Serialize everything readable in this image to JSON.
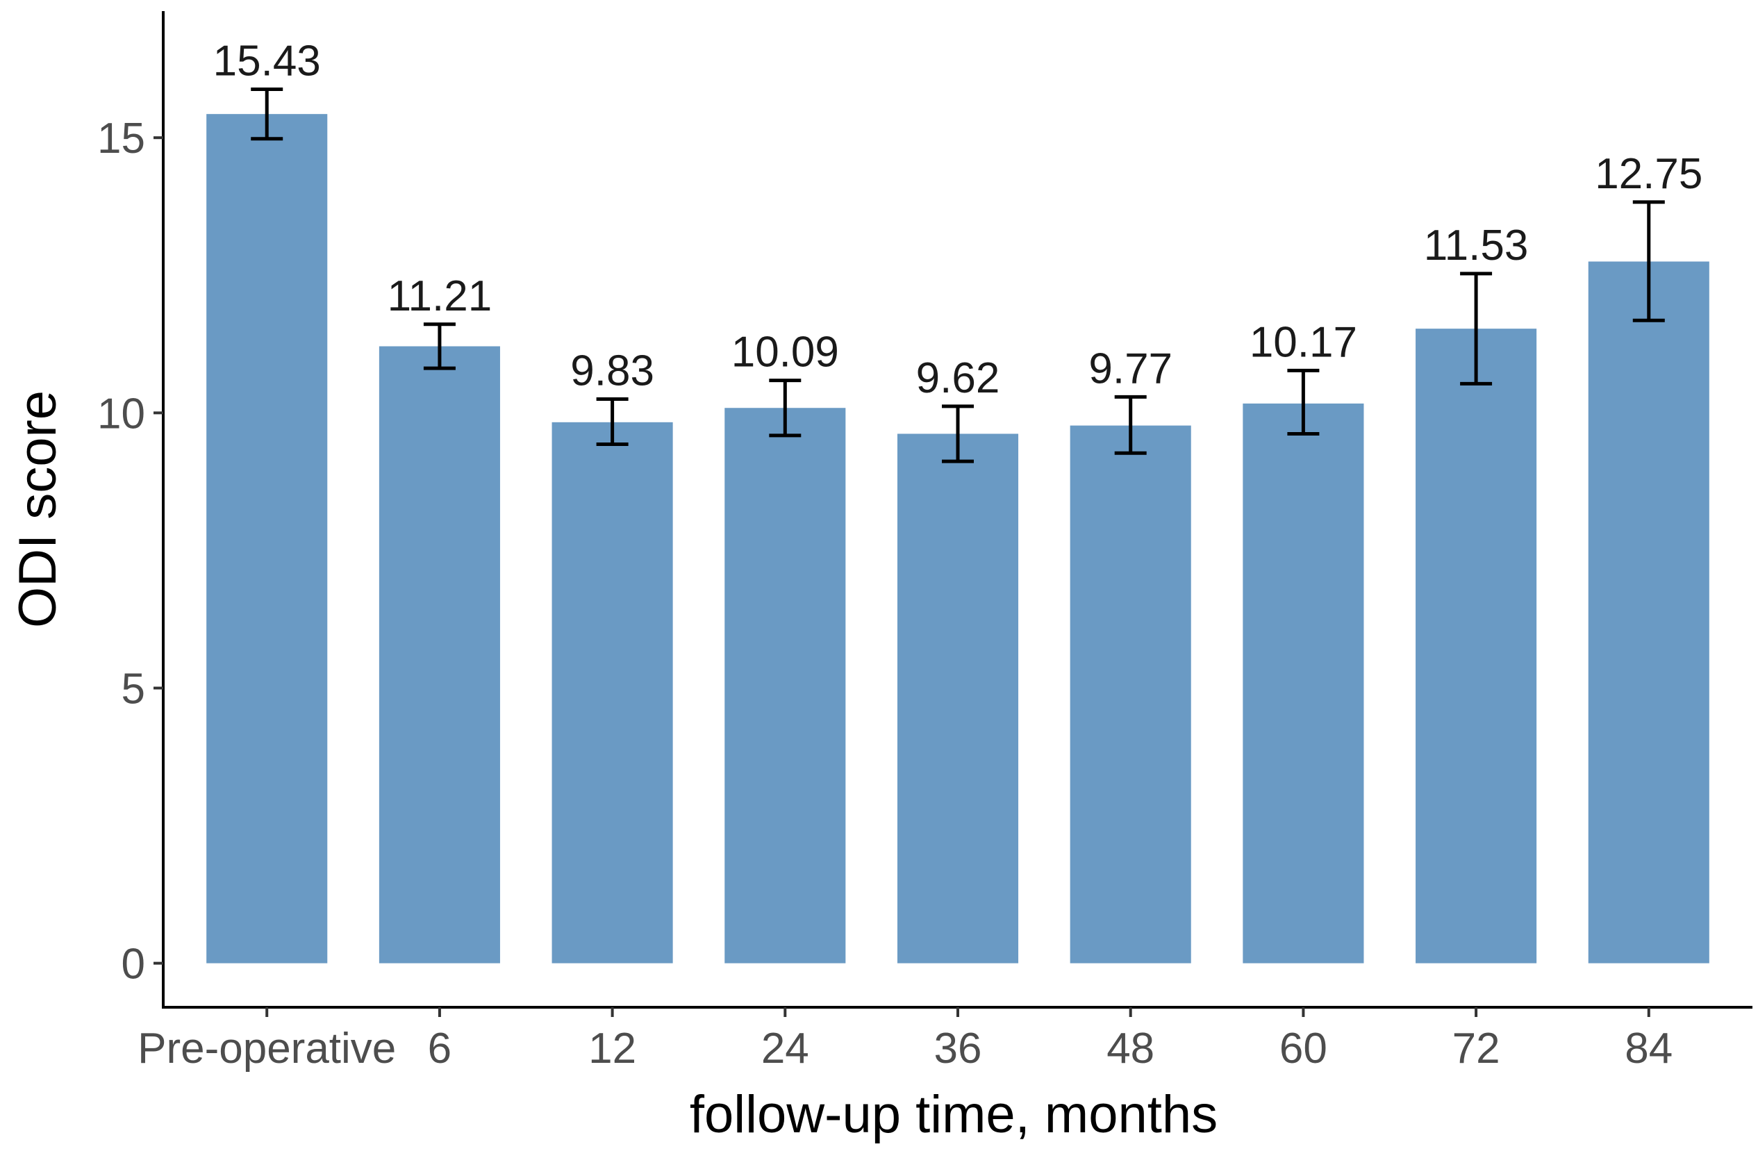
{
  "chart_data": {
    "type": "bar",
    "categories": [
      "Pre-operative",
      "6",
      "12",
      "24",
      "36",
      "48",
      "60",
      "72",
      "84"
    ],
    "values": [
      15.43,
      11.21,
      9.83,
      10.09,
      9.62,
      9.77,
      10.17,
      11.53,
      12.75
    ],
    "data_labels": [
      "15.43",
      "11.21",
      "9.83",
      "10.09",
      "9.62",
      "9.77",
      "10.17",
      "11.53",
      "12.75"
    ],
    "error_low": [
      14.98,
      10.81,
      9.43,
      9.59,
      9.12,
      9.27,
      9.62,
      10.53,
      11.68
    ],
    "error_high": [
      15.88,
      11.61,
      10.25,
      10.59,
      10.12,
      10.29,
      10.77,
      12.53,
      13.83
    ],
    "xlabel": "follow-up time, months",
    "ylabel": "ODI score",
    "ylim": [
      -0.8,
      17.3
    ],
    "yticks": [
      0,
      5,
      10,
      15
    ],
    "ytick_labels": [
      "0",
      "5",
      "10",
      "15"
    ],
    "grid": false,
    "legend": "none",
    "bar_color": "#6a9ac4",
    "error_color": "#000000"
  }
}
